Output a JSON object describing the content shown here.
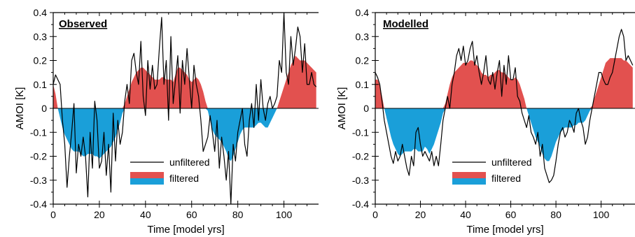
{
  "colors": {
    "positive_fill": "#e2514f",
    "negative_fill": "#1a9fd9",
    "line": "#000000",
    "axis": "#000000"
  },
  "legend": {
    "unfiltered": "unfiltered",
    "filtered": "filtered"
  },
  "chart_data": [
    {
      "type": "area",
      "title": "Observed",
      "xlabel": "Time [model yrs]",
      "ylabel": "AMOI [K]",
      "xlim": [
        0,
        115
      ],
      "ylim": [
        -0.4,
        0.4
      ],
      "xticks": [
        0,
        20,
        40,
        60,
        80,
        100
      ],
      "yticks": [
        -0.4,
        -0.3,
        -0.2,
        -0.1,
        0,
        0.1,
        0.2,
        0.3,
        0.4
      ],
      "xtick_labels": [
        "0",
        "20",
        "40",
        "60",
        "80",
        "100"
      ],
      "ytick_labels": [
        "-0.4",
        "-0.3",
        "-0.2",
        "-0.1",
        "0",
        "0.1",
        "0.2",
        "0.3",
        "0.4"
      ],
      "grid": false,
      "legend_position": "lower-center",
      "series": [
        {
          "name": "unfiltered",
          "x": [
            0,
            1,
            2,
            3,
            4,
            5,
            6,
            7,
            8,
            9,
            10,
            11,
            12,
            13,
            14,
            15,
            16,
            17,
            18,
            19,
            20,
            21,
            22,
            23,
            24,
            25,
            26,
            27,
            28,
            29,
            30,
            31,
            32,
            33,
            34,
            35,
            36,
            37,
            38,
            39,
            40,
            41,
            42,
            43,
            44,
            45,
            46,
            47,
            48,
            49,
            50,
            51,
            52,
            53,
            54,
            55,
            56,
            57,
            58,
            59,
            60,
            61,
            62,
            63,
            64,
            65,
            66,
            67,
            68,
            69,
            70,
            71,
            72,
            73,
            74,
            75,
            76,
            77,
            78,
            79,
            80,
            81,
            82,
            83,
            84,
            85,
            86,
            87,
            88,
            89,
            90,
            91,
            92,
            93,
            94,
            95,
            96,
            97,
            98,
            99,
            100,
            101,
            102,
            103,
            104,
            105,
            106,
            107,
            108,
            109,
            110,
            111,
            112,
            113,
            114
          ],
          "values": [
            0.1,
            0.14,
            0.12,
            0.1,
            -0.05,
            -0.15,
            -0.33,
            -0.2,
            -0.1,
            0.02,
            -0.27,
            -0.15,
            -0.2,
            -0.12,
            -0.2,
            -0.37,
            -0.1,
            -0.25,
            0.03,
            -0.05,
            -0.25,
            -0.22,
            -0.1,
            -0.28,
            -0.15,
            -0.35,
            -0.02,
            -0.22,
            -0.05,
            -0.15,
            -0.1,
            0.03,
            0.1,
            0.02,
            0.2,
            0.23,
            0.15,
            0.1,
            0.28,
            0.05,
            -0.03,
            0.2,
            0.08,
            0.18,
            0.08,
            0.1,
            0.25,
            0.38,
            0.1,
            0.2,
            -0.05,
            0.3,
            0.02,
            0.12,
            0.22,
            -0.02,
            0.2,
            0.1,
            0.25,
            0.12,
            0.0,
            0.18,
            0.1,
            0.05,
            -0.05,
            -0.18,
            -0.15,
            -0.12,
            -0.03,
            -0.1,
            -0.18,
            -0.05,
            -0.25,
            -0.12,
            -0.2,
            -0.3,
            -0.18,
            -0.4,
            -0.15,
            -0.22,
            -0.1,
            -0.05,
            0.0,
            -0.15,
            -0.2,
            -0.05,
            0.02,
            -0.08,
            0.1,
            -0.05,
            0.12,
            0.0,
            -0.05,
            0.02,
            0.05,
            0.0,
            0.02,
            0.05,
            0.2,
            0.15,
            0.4,
            0.15,
            0.1,
            0.3,
            0.18,
            0.25,
            0.34,
            0.3,
            0.15,
            0.27,
            0.1,
            0.1,
            0.15,
            0.1,
            0.09
          ]
        },
        {
          "name": "filtered",
          "x": [
            0,
            1,
            2,
            3,
            4,
            5,
            6,
            7,
            8,
            9,
            10,
            11,
            12,
            13,
            14,
            15,
            16,
            17,
            18,
            19,
            20,
            21,
            22,
            23,
            24,
            25,
            26,
            27,
            28,
            29,
            30,
            31,
            32,
            33,
            34,
            35,
            36,
            37,
            38,
            39,
            40,
            41,
            42,
            43,
            44,
            45,
            46,
            47,
            48,
            49,
            50,
            51,
            52,
            53,
            54,
            55,
            56,
            57,
            58,
            59,
            60,
            61,
            62,
            63,
            64,
            65,
            66,
            67,
            68,
            69,
            70,
            71,
            72,
            73,
            74,
            75,
            76,
            77,
            78,
            79,
            80,
            81,
            82,
            83,
            84,
            85,
            86,
            87,
            88,
            89,
            90,
            91,
            92,
            93,
            94,
            95,
            96,
            97,
            98,
            99,
            100,
            101,
            102,
            103,
            104,
            105,
            106,
            107,
            108,
            109,
            110,
            111,
            112,
            113,
            114
          ],
          "values": [
            0.1,
            0.06,
            0.0,
            -0.04,
            -0.08,
            -0.11,
            -0.13,
            -0.15,
            -0.17,
            -0.18,
            -0.18,
            -0.18,
            -0.19,
            -0.2,
            -0.2,
            -0.19,
            -0.19,
            -0.19,
            -0.2,
            -0.2,
            -0.21,
            -0.2,
            -0.19,
            -0.18,
            -0.17,
            -0.16,
            -0.14,
            -0.12,
            -0.09,
            -0.06,
            -0.02,
            0.02,
            0.05,
            0.08,
            0.11,
            0.13,
            0.15,
            0.16,
            0.17,
            0.17,
            0.16,
            0.15,
            0.14,
            0.13,
            0.12,
            0.12,
            0.12,
            0.13,
            0.13,
            0.12,
            0.12,
            0.12,
            0.11,
            0.14,
            0.17,
            0.17,
            0.16,
            0.15,
            0.14,
            0.12,
            0.11,
            0.12,
            0.13,
            0.12,
            0.1,
            0.07,
            0.03,
            -0.01,
            -0.05,
            -0.09,
            -0.11,
            -0.12,
            -0.13,
            -0.14,
            -0.16,
            -0.18,
            -0.21,
            -0.22,
            -0.2,
            -0.17,
            -0.14,
            -0.11,
            -0.09,
            -0.08,
            -0.08,
            -0.08,
            -0.08,
            -0.08,
            -0.07,
            -0.06,
            -0.06,
            -0.07,
            -0.08,
            -0.08,
            -0.06,
            -0.04,
            -0.02,
            0.0,
            0.03,
            0.06,
            0.09,
            0.12,
            0.15,
            0.18,
            0.2,
            0.22,
            0.21,
            0.2,
            0.2,
            0.2,
            0.19,
            0.18,
            0.17,
            0.16,
            0.15
          ]
        }
      ]
    },
    {
      "type": "area",
      "title": "Modelled",
      "xlabel": "Time [model yrs]",
      "ylabel": "AMOI [K]",
      "xlim": [
        0,
        115
      ],
      "ylim": [
        -0.4,
        0.4
      ],
      "xticks": [
        0,
        20,
        40,
        60,
        80,
        100
      ],
      "yticks": [
        -0.4,
        -0.3,
        -0.2,
        -0.1,
        0,
        0.1,
        0.2,
        0.3,
        0.4
      ],
      "xtick_labels": [
        "0",
        "20",
        "40",
        "60",
        "80",
        "100"
      ],
      "ytick_labels": [
        "-0.4",
        "-0.3",
        "-0.2",
        "-0.1",
        "0",
        "0.1",
        "0.2",
        "0.3",
        "0.4"
      ],
      "grid": false,
      "legend_position": "lower-center",
      "series": [
        {
          "name": "unfiltered",
          "x": [
            0,
            1,
            2,
            3,
            4,
            5,
            6,
            7,
            8,
            9,
            10,
            11,
            12,
            13,
            14,
            15,
            16,
            17,
            18,
            19,
            20,
            21,
            22,
            23,
            24,
            25,
            26,
            27,
            28,
            29,
            30,
            31,
            32,
            33,
            34,
            35,
            36,
            37,
            38,
            39,
            40,
            41,
            42,
            43,
            44,
            45,
            46,
            47,
            48,
            49,
            50,
            51,
            52,
            53,
            54,
            55,
            56,
            57,
            58,
            59,
            60,
            61,
            62,
            63,
            64,
            65,
            66,
            67,
            68,
            69,
            70,
            71,
            72,
            73,
            74,
            75,
            76,
            77,
            78,
            79,
            80,
            81,
            82,
            83,
            84,
            85,
            86,
            87,
            88,
            89,
            90,
            91,
            92,
            93,
            94,
            95,
            96,
            97,
            98,
            99,
            100,
            101,
            102,
            103,
            104,
            105,
            106,
            107,
            108,
            109,
            110,
            111,
            112,
            113,
            114
          ],
          "values": [
            0.15,
            0.13,
            0.1,
            0.03,
            -0.05,
            -0.1,
            -0.15,
            -0.2,
            -0.23,
            -0.18,
            -0.22,
            -0.2,
            -0.15,
            -0.2,
            -0.25,
            -0.28,
            -0.2,
            -0.24,
            -0.1,
            -0.08,
            -0.15,
            -0.2,
            -0.18,
            -0.2,
            -0.22,
            -0.18,
            -0.24,
            -0.2,
            -0.24,
            -0.15,
            -0.05,
            0.0,
            0.05,
            0.0,
            0.1,
            0.15,
            0.22,
            0.25,
            0.2,
            0.26,
            0.18,
            0.2,
            0.25,
            0.28,
            0.18,
            0.22,
            0.15,
            0.1,
            0.15,
            0.22,
            0.12,
            0.1,
            0.15,
            0.08,
            0.15,
            0.2,
            0.05,
            0.18,
            0.1,
            0.22,
            0.12,
            0.12,
            0.17,
            0.05,
            0.03,
            -0.02,
            -0.05,
            -0.08,
            -0.03,
            -0.1,
            -0.12,
            -0.15,
            -0.1,
            -0.2,
            -0.15,
            -0.25,
            -0.28,
            -0.31,
            -0.3,
            -0.28,
            -0.22,
            -0.15,
            -0.1,
            -0.08,
            -0.12,
            -0.1,
            -0.05,
            -0.07,
            -0.1,
            -0.02,
            0.0,
            -0.05,
            -0.08,
            -0.15,
            -0.12,
            -0.05,
            0.0,
            0.05,
            0.1,
            0.15,
            0.15,
            0.12,
            0.1,
            0.1,
            0.13,
            0.15,
            0.2,
            0.25,
            0.3,
            0.33,
            0.3,
            0.2,
            0.22,
            0.2,
            0.18
          ]
        },
        {
          "name": "filtered",
          "x": [
            0,
            1,
            2,
            3,
            4,
            5,
            6,
            7,
            8,
            9,
            10,
            11,
            12,
            13,
            14,
            15,
            16,
            17,
            18,
            19,
            20,
            21,
            22,
            23,
            24,
            25,
            26,
            27,
            28,
            29,
            30,
            31,
            32,
            33,
            34,
            35,
            36,
            37,
            38,
            39,
            40,
            41,
            42,
            43,
            44,
            45,
            46,
            47,
            48,
            49,
            50,
            51,
            52,
            53,
            54,
            55,
            56,
            57,
            58,
            59,
            60,
            61,
            62,
            63,
            64,
            65,
            66,
            67,
            68,
            69,
            70,
            71,
            72,
            73,
            74,
            75,
            76,
            77,
            78,
            79,
            80,
            81,
            82,
            83,
            84,
            85,
            86,
            87,
            88,
            89,
            90,
            91,
            92,
            93,
            94,
            95,
            96,
            97,
            98,
            99,
            100,
            101,
            102,
            103,
            104,
            105,
            106,
            107,
            108,
            109,
            110,
            111,
            112,
            113,
            114
          ],
          "values": [
            0.12,
            0.12,
            0.1,
            0.05,
            0.0,
            -0.04,
            -0.08,
            -0.12,
            -0.15,
            -0.17,
            -0.19,
            -0.2,
            -0.19,
            -0.18,
            -0.18,
            -0.18,
            -0.18,
            -0.17,
            -0.17,
            -0.18,
            -0.18,
            -0.18,
            -0.16,
            -0.17,
            -0.19,
            -0.17,
            -0.15,
            -0.12,
            -0.09,
            -0.06,
            -0.02,
            0.02,
            0.06,
            0.1,
            0.13,
            0.15,
            0.16,
            0.17,
            0.18,
            0.19,
            0.19,
            0.19,
            0.2,
            0.2,
            0.19,
            0.18,
            0.17,
            0.15,
            0.14,
            0.14,
            0.13,
            0.14,
            0.14,
            0.15,
            0.16,
            0.16,
            0.15,
            0.15,
            0.14,
            0.13,
            0.12,
            0.12,
            0.13,
            0.12,
            0.1,
            0.07,
            0.04,
            0.0,
            -0.03,
            -0.06,
            -0.09,
            -0.12,
            -0.14,
            -0.16,
            -0.19,
            -0.21,
            -0.22,
            -0.22,
            -0.2,
            -0.17,
            -0.14,
            -0.12,
            -0.1,
            -0.09,
            -0.08,
            -0.08,
            -0.08,
            -0.08,
            -0.07,
            -0.07,
            -0.06,
            -0.06,
            -0.06,
            -0.05,
            -0.03,
            -0.01,
            0.01,
            0.04,
            0.07,
            0.1,
            0.13,
            0.16,
            0.19,
            0.2,
            0.21,
            0.21,
            0.21,
            0.21,
            0.21,
            0.21,
            0.2,
            0.2,
            0.19,
            0.18,
            0.17
          ]
        }
      ]
    }
  ]
}
